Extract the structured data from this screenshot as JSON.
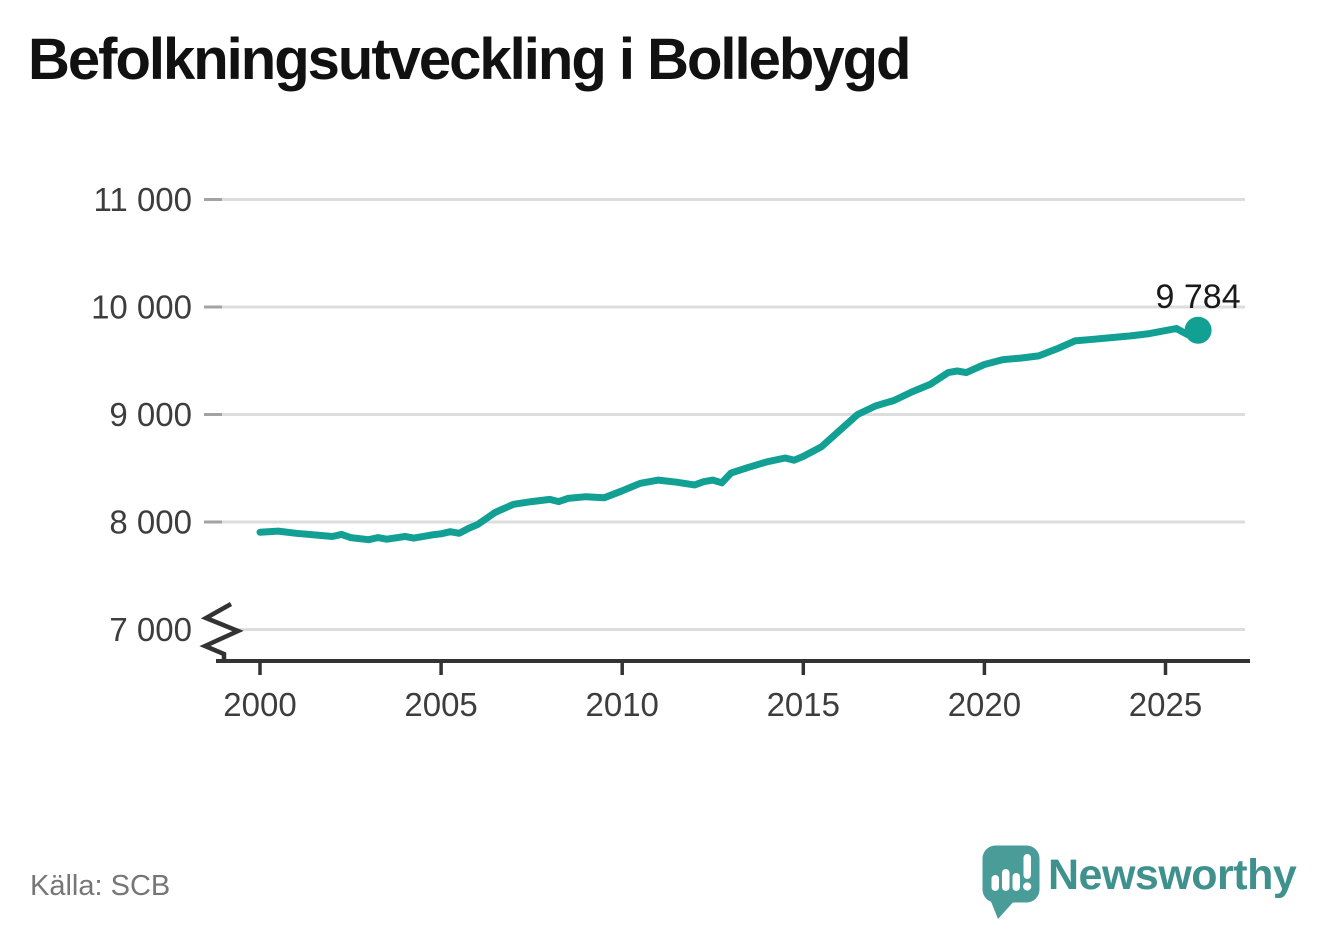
{
  "header": {
    "title": "Befolkningsutveckling i Bollebygd"
  },
  "footer": {
    "source": "Källa: SCB",
    "brand_name": "Newsworthy"
  },
  "colors": {
    "line": "#12a094",
    "end_dot": "#12a094",
    "end_label_text": "#1a1a1a",
    "title_text": "#111111",
    "axis_text": "#3d3d3d",
    "axis_line": "#333333",
    "gridline": "#dddddd",
    "gridline_stub": "#a3a3a3",
    "source_text": "#767676",
    "brand_teal": "#4a9c98",
    "brand_wordmark": "#3f918e"
  },
  "chart_data": {
    "type": "line",
    "title": "Befolkningsutveckling i Bollebygd",
    "source": "Källa: SCB",
    "xlabel": "",
    "ylabel": "",
    "grid": "horizontal",
    "xlim": [
      1998.8,
      2027.2
    ],
    "ylim": [
      7000,
      11000
    ],
    "y_axis_break": true,
    "x_ticks": [
      2000,
      2005,
      2010,
      2015,
      2020,
      2025
    ],
    "y_ticks": [
      {
        "value": 7000,
        "label": "7 000"
      },
      {
        "value": 8000,
        "label": "8 000"
      },
      {
        "value": 9000,
        "label": "9 000"
      },
      {
        "value": 10000,
        "label": "10 000"
      },
      {
        "value": 11000,
        "label": "11 000"
      }
    ],
    "series_name": "Befolkning",
    "x": [
      2000,
      2000.5,
      2001,
      2001.5,
      2002,
      2002.25,
      2002.5,
      2003,
      2003.25,
      2003.5,
      2004,
      2004.25,
      2004.75,
      2005,
      2005.25,
      2005.5,
      2005.75,
      2006,
      2006.5,
      2007,
      2007.5,
      2008,
      2008.25,
      2008.5,
      2009,
      2009.5,
      2010,
      2010.5,
      2011,
      2011.5,
      2012,
      2012.25,
      2012.5,
      2012.75,
      2013,
      2013.5,
      2014,
      2014.5,
      2014.75,
      2015,
      2015.5,
      2016,
      2016.5,
      2017,
      2017.5,
      2018,
      2018.5,
      2019,
      2019.25,
      2019.5,
      2020,
      2020.5,
      2021,
      2021.5,
      2022,
      2022.5,
      2023,
      2023.5,
      2024,
      2024.5,
      2025,
      2025.3,
      2025.6,
      2025.9
    ],
    "values": [
      7905,
      7915,
      7895,
      7880,
      7865,
      7885,
      7855,
      7835,
      7855,
      7840,
      7865,
      7850,
      7880,
      7890,
      7910,
      7895,
      7940,
      7975,
      8090,
      8165,
      8190,
      8210,
      8190,
      8220,
      8235,
      8225,
      8290,
      8360,
      8390,
      8370,
      8345,
      8375,
      8390,
      8365,
      8455,
      8510,
      8560,
      8595,
      8575,
      8610,
      8700,
      8850,
      9000,
      9080,
      9130,
      9210,
      9280,
      9390,
      9405,
      9390,
      9465,
      9510,
      9525,
      9545,
      9610,
      9685,
      9700,
      9715,
      9730,
      9750,
      9780,
      9800,
      9745,
      9784
    ],
    "end_value": 9784,
    "end_label": "9 784"
  }
}
